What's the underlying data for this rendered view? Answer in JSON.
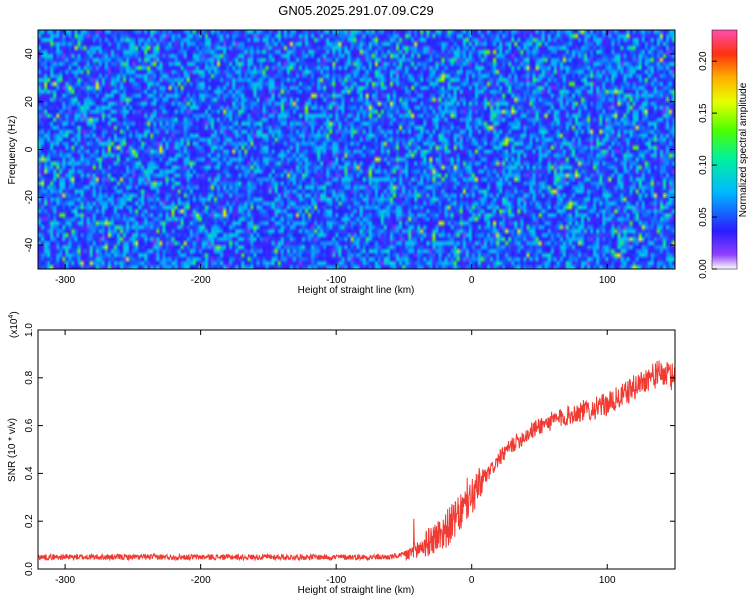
{
  "title": "GN05.2025.291.07.09.C29",
  "chart_data": [
    {
      "type": "heatmap",
      "xlabel": "Height of straight line (km)",
      "ylabel": "Frequency (Hz)",
      "xlim": [
        -320,
        150
      ],
      "ylim": [
        -50,
        50
      ],
      "xticks": [
        -300,
        -200,
        -100,
        0,
        100
      ],
      "yticks": [
        -40,
        -20,
        0,
        20,
        40
      ],
      "colorbar": {
        "label": "Normalized spectral amplitude",
        "range": [
          0,
          0.23
        ],
        "ticks": [
          0.0,
          0.05,
          0.1,
          0.15,
          0.2
        ],
        "tick_labels": [
          "0.00",
          "0.05",
          "0.10",
          "0.15",
          "0.20"
        ],
        "colormap": "rainbow-purple-to-red"
      },
      "typical_value_range": [
        0.03,
        0.09
      ],
      "description_note": "noise-like amplitude field, values mostly 0.03-0.09 with sparse peaks up to ~0.22"
    },
    {
      "type": "line",
      "xlabel": "Height of straight line (km)",
      "ylabel": "SNR (10 * v/v)",
      "y_multiplier": "(x10",
      "y_multiplier_exp": "4",
      "y_multiplier_close": ")",
      "xlim": [
        -320,
        150
      ],
      "ylim": [
        0,
        1.0
      ],
      "xticks": [
        -300,
        -200,
        -100,
        0,
        100
      ],
      "yticks": [
        0.0,
        0.2,
        0.4,
        0.6,
        0.8,
        1.0
      ],
      "ytick_labels": [
        "0.0",
        "0.2",
        "0.4",
        "0.6",
        "0.8",
        "1.0"
      ],
      "line_color": "#f03a32",
      "series": [
        {
          "x": [
            -320,
            -300,
            -250,
            -200,
            -150,
            -100,
            -60,
            -48,
            -40,
            -30,
            -20,
            -10,
            0,
            10,
            20,
            30,
            40,
            50,
            60,
            70,
            80,
            90,
            100,
            110,
            120,
            130,
            140,
            150
          ],
          "values": [
            0.05,
            0.05,
            0.05,
            0.05,
            0.05,
            0.05,
            0.05,
            0.06,
            0.08,
            0.12,
            0.16,
            0.22,
            0.3,
            0.38,
            0.46,
            0.52,
            0.56,
            0.6,
            0.62,
            0.64,
            0.66,
            0.67,
            0.69,
            0.72,
            0.76,
            0.8,
            0.82,
            0.8
          ]
        }
      ]
    }
  ]
}
